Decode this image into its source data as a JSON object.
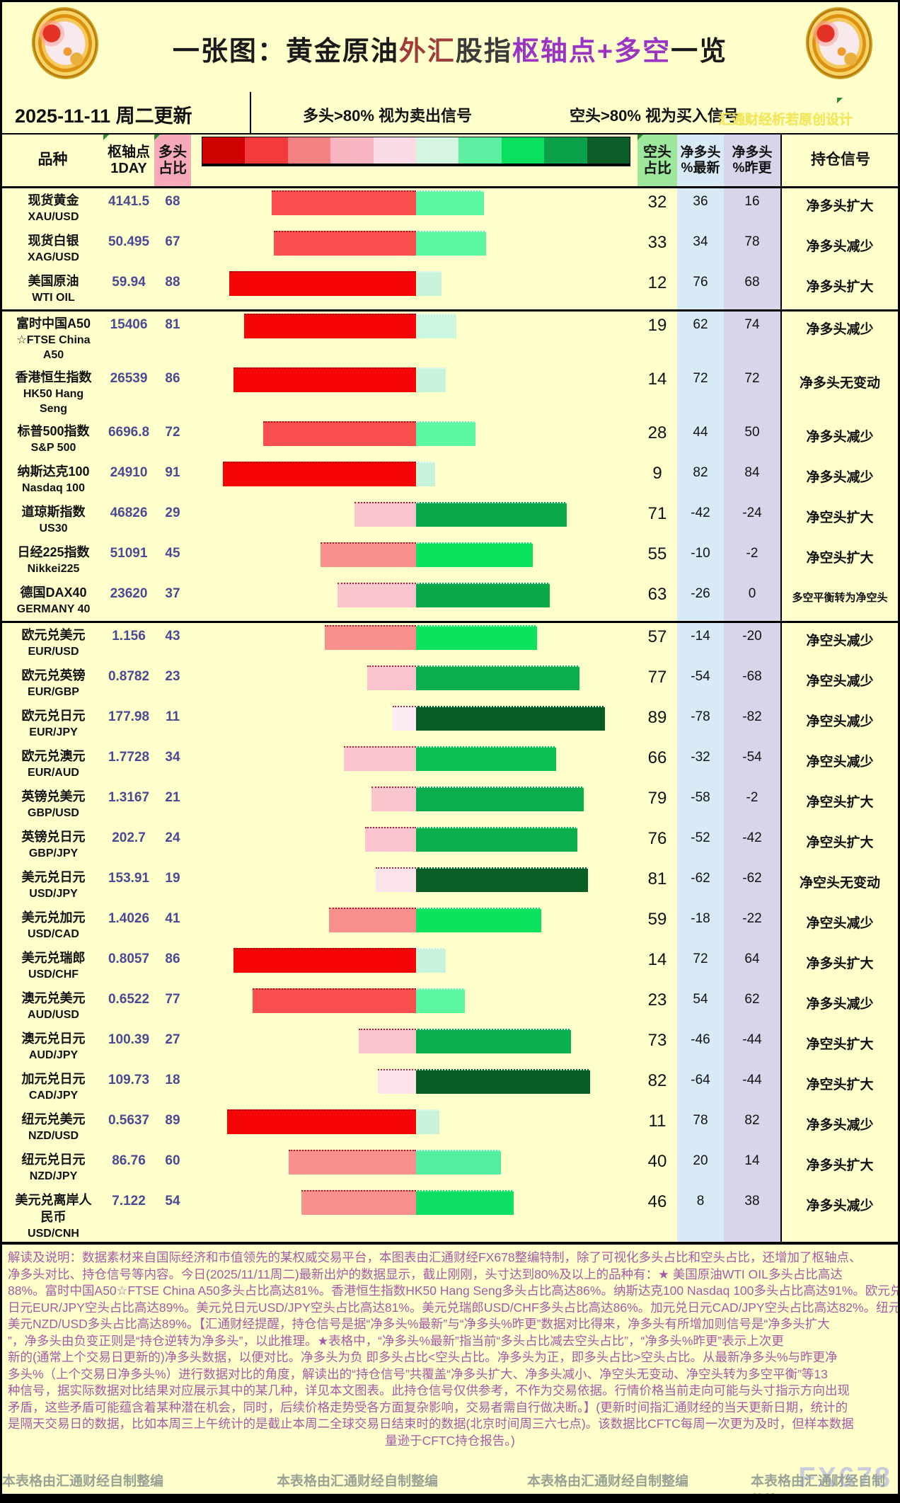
{
  "title": {
    "segments": [
      {
        "text": "一张图：黄金原油",
        "color": "#1a1a1a"
      },
      {
        "text": "外汇",
        "color": "#9e3b3b"
      },
      {
        "text": "股指",
        "color": "#3a3a3a"
      },
      {
        "text": "枢轴点+多空",
        "color": "#9a35c3"
      },
      {
        "text": "一览",
        "color": "#1a1a1a"
      }
    ]
  },
  "toolbar": {
    "date": "2025-11-11 周二更新",
    "long_rule": "多头>80% 视为卖出信号",
    "short_rule": "空头>80% 视为买入信号",
    "watermark": "汇通财经析若原创设计"
  },
  "header": {
    "variety": "品种",
    "pivot_l1": "枢轴点",
    "pivot_l2": "1DAY",
    "long_l1": "多头",
    "long_l2": "占比",
    "short_l1": "空头",
    "short_l2": "占比",
    "net_latest_l1": "净多头",
    "net_latest_l2": "%最新",
    "net_prev_l1": "净多头",
    "net_prev_l2": "%昨更",
    "signal": "持仓信号",
    "color_scale": [
      "#cf0000",
      "#f43b3b",
      "#f48181",
      "#f7b6c2",
      "#fbdce6",
      "#d4f5e0",
      "#5ef0a1",
      "#0bdf5e",
      "#0ba04a",
      "#0b5c26"
    ]
  },
  "colors": {
    "page_bg": "#ffffcb",
    "long_col_bg": "#f6a9b8",
    "short_col_bg": "#9ce79c",
    "net_latest_bg": "#d8eaf6",
    "net_prev_bg": "#dad4eb",
    "value_text": "#4a4a94"
  },
  "table": {
    "rows": [
      {
        "name_lines": [
          "现货黄金",
          "XAU/USD"
        ],
        "pivot": "4141.5",
        "long_pct": 68,
        "short_pct": 32,
        "net_latest": "36",
        "net_prev": "16",
        "signal": "净多头扩大",
        "long_color": "#f94f4f",
        "short_color": "#5bf7a1",
        "section_end": false,
        "tall": false
      },
      {
        "name_lines": [
          "现货白银",
          "XAG/USD"
        ],
        "pivot": "50.495",
        "long_pct": 67,
        "short_pct": 33,
        "net_latest": "34",
        "net_prev": "78",
        "signal": "净多头减少",
        "long_color": "#f94f4f",
        "short_color": "#5bf7a1",
        "section_end": false,
        "tall": false
      },
      {
        "name_lines": [
          "美国原油",
          "WTI OIL"
        ],
        "pivot": "59.94",
        "long_pct": 88,
        "short_pct": 12,
        "net_latest": "76",
        "net_prev": "68",
        "signal": "净多头扩大",
        "long_color": "#f50505",
        "short_color": "#c9f2da",
        "section_end": true,
        "tall": false
      },
      {
        "name_lines": [
          "富时中国A50",
          "☆FTSE China",
          "A50"
        ],
        "pivot": "15406",
        "long_pct": 81,
        "short_pct": 19,
        "net_latest": "62",
        "net_prev": "74",
        "signal": "净多头减少",
        "long_color": "#f50505",
        "short_color": "#cdf6de",
        "section_end": false,
        "tall": true
      },
      {
        "name_lines": [
          "香港恒生指数",
          "HK50 Hang",
          "Seng"
        ],
        "pivot": "26539",
        "long_pct": 86,
        "short_pct": 14,
        "net_latest": "72",
        "net_prev": "72",
        "signal": "净多头无变动",
        "long_color": "#f50505",
        "short_color": "#c9f2da",
        "section_end": false,
        "tall": true
      },
      {
        "name_lines": [
          "标普500指数",
          "S&P 500"
        ],
        "pivot": "6696.8",
        "long_pct": 72,
        "short_pct": 28,
        "net_latest": "44",
        "net_prev": "50",
        "signal": "净多头减少",
        "long_color": "#f94f4f",
        "short_color": "#5bf7a1",
        "section_end": false,
        "tall": false
      },
      {
        "name_lines": [
          "纳斯达克100",
          "Nasdaq 100"
        ],
        "pivot": "24910",
        "long_pct": 91,
        "short_pct": 9,
        "net_latest": "82",
        "net_prev": "84",
        "signal": "净多头减少",
        "long_color": "#f50505",
        "short_color": "#c9f2da",
        "section_end": false,
        "tall": false
      },
      {
        "name_lines": [
          "道琼斯指数",
          "US30"
        ],
        "pivot": "46826",
        "long_pct": 29,
        "short_pct": 71,
        "net_latest": "-42",
        "net_prev": "-24",
        "signal": "净空头扩大",
        "long_color": "#fbc4cf",
        "short_color": "#0aa94a",
        "section_end": false,
        "tall": false
      },
      {
        "name_lines": [
          "日经225指数",
          "Nikkei225"
        ],
        "pivot": "51091",
        "long_pct": 45,
        "short_pct": 55,
        "net_latest": "-10",
        "net_prev": "-2",
        "signal": "净空头扩大",
        "long_color": "#f9908d",
        "short_color": "#0de25f",
        "section_end": false,
        "tall": false
      },
      {
        "name_lines": [
          "德国DAX40",
          "GERMANY 40"
        ],
        "pivot": "23620",
        "long_pct": 37,
        "short_pct": 63,
        "net_latest": "-26",
        "net_prev": "0",
        "signal": "多空平衡转为净空头",
        "long_color": "#fbc4cf",
        "short_color": "#0aa94a",
        "section_end": true,
        "tall": false
      },
      {
        "name_lines": [
          "欧元兑美元",
          "EUR/USD"
        ],
        "pivot": "1.156",
        "long_pct": 43,
        "short_pct": 57,
        "net_latest": "-14",
        "net_prev": "-20",
        "signal": "净空头减少",
        "long_color": "#f9908d",
        "short_color": "#0de25f",
        "section_end": false,
        "tall": false
      },
      {
        "name_lines": [
          "欧元兑英镑",
          "EUR/GBP"
        ],
        "pivot": "0.8782",
        "long_pct": 23,
        "short_pct": 77,
        "net_latest": "-54",
        "net_prev": "-68",
        "signal": "净空头减少",
        "long_color": "#fbc4cf",
        "short_color": "#0bad4c",
        "section_end": false,
        "tall": false
      },
      {
        "name_lines": [
          "欧元兑日元",
          "EUR/JPY"
        ],
        "pivot": "177.98",
        "long_pct": 11,
        "short_pct": 89,
        "net_latest": "-78",
        "net_prev": "-82",
        "signal": "净空头减少",
        "long_color": "#fcebf2",
        "short_color": "#085c23",
        "section_end": false,
        "tall": false
      },
      {
        "name_lines": [
          "欧元兑澳元",
          "EUR/AUD"
        ],
        "pivot": "1.7728",
        "long_pct": 34,
        "short_pct": 66,
        "net_latest": "-32",
        "net_prev": "-54",
        "signal": "净空头减少",
        "long_color": "#fbc4cf",
        "short_color": "#0bbf52",
        "section_end": false,
        "tall": false
      },
      {
        "name_lines": [
          "英镑兑美元",
          "GBP/USD"
        ],
        "pivot": "1.3167",
        "long_pct": 21,
        "short_pct": 79,
        "net_latest": "-58",
        "net_prev": "-2",
        "signal": "净空头扩大",
        "long_color": "#fbc4cf",
        "short_color": "#0bad4c",
        "section_end": false,
        "tall": false
      },
      {
        "name_lines": [
          "英镑兑日元",
          "GBP/JPY"
        ],
        "pivot": "202.7",
        "long_pct": 24,
        "short_pct": 76,
        "net_latest": "-52",
        "net_prev": "-42",
        "signal": "净空头扩大",
        "long_color": "#fbc4cf",
        "short_color": "#0bb04d",
        "section_end": false,
        "tall": false
      },
      {
        "name_lines": [
          "美元兑日元",
          "USD/JPY"
        ],
        "pivot": "153.91",
        "long_pct": 19,
        "short_pct": 81,
        "net_latest": "-62",
        "net_prev": "-62",
        "signal": "净空头无变动",
        "long_color": "#fde3ea",
        "short_color": "#0a5e26",
        "section_end": false,
        "tall": false
      },
      {
        "name_lines": [
          "美元兑加元",
          "USD/CAD"
        ],
        "pivot": "1.4026",
        "long_pct": 41,
        "short_pct": 59,
        "net_latest": "-18",
        "net_prev": "-22",
        "signal": "净空头减少",
        "long_color": "#f9908d",
        "short_color": "#0de25f",
        "section_end": false,
        "tall": false
      },
      {
        "name_lines": [
          "美元兑瑞郎",
          "USD/CHF"
        ],
        "pivot": "0.8057",
        "long_pct": 86,
        "short_pct": 14,
        "net_latest": "72",
        "net_prev": "64",
        "signal": "净多头扩大",
        "long_color": "#f50505",
        "short_color": "#c9f2da",
        "section_end": false,
        "tall": false
      },
      {
        "name_lines": [
          "澳元兑美元",
          "AUD/USD"
        ],
        "pivot": "0.6522",
        "long_pct": 77,
        "short_pct": 23,
        "net_latest": "54",
        "net_prev": "62",
        "signal": "净多头减少",
        "long_color": "#f94f4f",
        "short_color": "#5bf7a1",
        "section_end": false,
        "tall": false
      },
      {
        "name_lines": [
          "澳元兑日元",
          "AUD/JPY"
        ],
        "pivot": "100.39",
        "long_pct": 27,
        "short_pct": 73,
        "net_latest": "-46",
        "net_prev": "-44",
        "signal": "净空头扩大",
        "long_color": "#fbc4cf",
        "short_color": "#0bb04d",
        "section_end": false,
        "tall": false
      },
      {
        "name_lines": [
          "加元兑日元",
          "CAD/JPY"
        ],
        "pivot": "109.73",
        "long_pct": 18,
        "short_pct": 82,
        "net_latest": "-64",
        "net_prev": "-44",
        "signal": "净空头扩大",
        "long_color": "#fde3ea",
        "short_color": "#075e22",
        "section_end": false,
        "tall": false
      },
      {
        "name_lines": [
          "纽元兑美元",
          "NZD/USD"
        ],
        "pivot": "0.5637",
        "long_pct": 89,
        "short_pct": 11,
        "net_latest": "78",
        "net_prev": "82",
        "signal": "净多头减少",
        "long_color": "#f50505",
        "short_color": "#c9f2da",
        "section_end": false,
        "tall": false
      },
      {
        "name_lines": [
          "纽元兑日元",
          "NZD/JPY"
        ],
        "pivot": "86.76",
        "long_pct": 60,
        "short_pct": 40,
        "net_latest": "20",
        "net_prev": "14",
        "signal": "净多头扩大",
        "long_color": "#f9908d",
        "short_color": "#55efa0",
        "section_end": false,
        "tall": false
      },
      {
        "name_lines": [
          "美元兑离岸人",
          "民币",
          "USD/CNH"
        ],
        "pivot": "7.122",
        "long_pct": 54,
        "short_pct": 46,
        "net_latest": "8",
        "net_prev": "38",
        "signal": "净多头减少",
        "long_color": "#f9908d",
        "short_color": "#0ee063",
        "section_end": false,
        "tall": true
      }
    ]
  },
  "explanation": {
    "lines": [
      "解读及说明：数据素材来自国际经济和市值领先的某权威交易平台，本图表由汇通财经FX678整编特制，除了可视化多头占比和空头占比，还增加了枢轴点、",
      "净多头对比、持仓信号等内容。今日(2025/11/11周二)最新出炉的数据显示，截止刚刚，头寸达到80%及以上的品种有：★ 美国原油WTI OIL多头占比高达",
      "88%。富时中国A50☆FTSE China A50多头占比高达81%。香港恒生指数HK50 Hang Seng多头占比高达86%。纳斯达克100 Nasdaq 100多头占比高达91%。欧元兑",
      "日元EUR/JPY空头占比高达89%。美元兑日元USD/JPY空头占比高达81%。美元兑瑞郎USD/CHF多头占比高达86%。加元兑日元CAD/JPY空头占比高达82%。纽元兑",
      "美元NZD/USD多头占比高达89%。【汇通财经提醒，持仓信号是据“净多头%最新”与“净多头%昨更”数据对比得来，净多头有所增加则信号是“净多头扩大",
      "”，净多头由负变正则是“持仓逆转为净多头”，以此推理。★表格中，“净多头%最新”指当前“多头占比减去空头占比”，“净多头%昨更”表示上次更",
      "新的(通常上个交易日更新的)净多头数据，以便对比。净多头为负 即多头占比<空头占比。净多头为正，即多头占比>空头占比。从最新净多头%与昨更净",
      "多头%（上个交易日净多头%）进行数据对比的角度，解读出的“持仓信号”共覆盖“净多头扩大、净多头减小、净空头无变动、净空头转为多空平衡”等13",
      "种信号，据实际数据对比结果对应展示其中的某几种，详见本文图表。此持仓信号仅供参考，不作为交易依据。行情价格当前走向可能与头寸指示方向出现",
      "矛盾，这些矛盾可能蕴含着某种潜在机会，同时，后续价格走势受各方面复杂影响，交易者需自行做决断。】(更新时间指汇通财经的当天更新日期，统计的",
      "是隔天交易日的数据，比如本周三上午统计的是截止本周二全球交易日结束时的数据(北京时间周三六七点)。该数据比CFTC每周一次更为及时，但样本数据",
      "量逊于CFTC持仓报告。)"
    ]
  },
  "footer": {
    "credits": [
      "本表格由汇通财经自制整编",
      "本表格由汇通财经自制整编",
      "本表格由汇通财经自制整编",
      "本表格由汇通财经自制整编"
    ],
    "logo": "FX678"
  },
  "chart_data": {
    "type": "bar",
    "orientation": "horizontal-diverging",
    "title": "一张图：黄金原油外汇股指枢轴点+多空一览",
    "categories": [
      "XAU/USD",
      "XAG/USD",
      "WTI OIL",
      "FTSE China A50",
      "HK50 Hang Seng",
      "S&P 500",
      "Nasdaq 100",
      "US30",
      "Nikkei225",
      "GERMANY 40",
      "EUR/USD",
      "EUR/GBP",
      "EUR/JPY",
      "EUR/AUD",
      "GBP/USD",
      "GBP/JPY",
      "USD/JPY",
      "USD/CAD",
      "USD/CHF",
      "AUD/USD",
      "AUD/JPY",
      "CAD/JPY",
      "NZD/USD",
      "NZD/JPY",
      "USD/CNH"
    ],
    "series": [
      {
        "name": "枢轴点1DAY",
        "values": [
          4141.5,
          50.495,
          59.94,
          15406,
          26539,
          6696.8,
          24910,
          46826,
          51091,
          23620,
          1.156,
          0.8782,
          177.98,
          1.7728,
          1.3167,
          202.7,
          153.91,
          1.4026,
          0.8057,
          0.6522,
          100.39,
          109.73,
          0.5637,
          86.76,
          7.122
        ]
      },
      {
        "name": "多头占比",
        "values": [
          68,
          67,
          88,
          81,
          86,
          72,
          91,
          29,
          45,
          37,
          43,
          23,
          11,
          34,
          21,
          24,
          19,
          41,
          86,
          77,
          27,
          18,
          89,
          60,
          54
        ]
      },
      {
        "name": "空头占比",
        "values": [
          32,
          33,
          12,
          19,
          14,
          28,
          9,
          71,
          55,
          63,
          57,
          77,
          89,
          66,
          79,
          76,
          81,
          59,
          14,
          23,
          73,
          82,
          11,
          40,
          46
        ]
      },
      {
        "name": "净多头%最新",
        "values": [
          36,
          34,
          76,
          62,
          72,
          44,
          82,
          -42,
          -10,
          -26,
          -14,
          -54,
          -78,
          -32,
          -58,
          -52,
          -62,
          -18,
          72,
          54,
          -46,
          -64,
          78,
          20,
          8
        ]
      },
      {
        "name": "净多头%昨更",
        "values": [
          16,
          78,
          68,
          74,
          72,
          50,
          84,
          -24,
          -2,
          0,
          -20,
          -68,
          -82,
          -54,
          -2,
          -42,
          -62,
          -22,
          64,
          62,
          -44,
          -44,
          82,
          14,
          38
        ]
      }
    ],
    "signals": [
      "净多头扩大",
      "净多头减少",
      "净多头扩大",
      "净多头减少",
      "净多头无变动",
      "净多头减少",
      "净多头减少",
      "净空头扩大",
      "净空头扩大",
      "多空平衡转为净空头",
      "净空头减少",
      "净空头减少",
      "净空头减少",
      "净空头减少",
      "净空头扩大",
      "净空头扩大",
      "净空头无变动",
      "净空头减少",
      "净多头扩大",
      "净多头减少",
      "净空头扩大",
      "净空头扩大",
      "净多头减少",
      "净多头扩大",
      "净多头减少"
    ],
    "xlim": [
      -100,
      100
    ],
    "legend_note": "红色=多头占比(左)，绿色=空头占比(右)，色深随占比增大"
  }
}
